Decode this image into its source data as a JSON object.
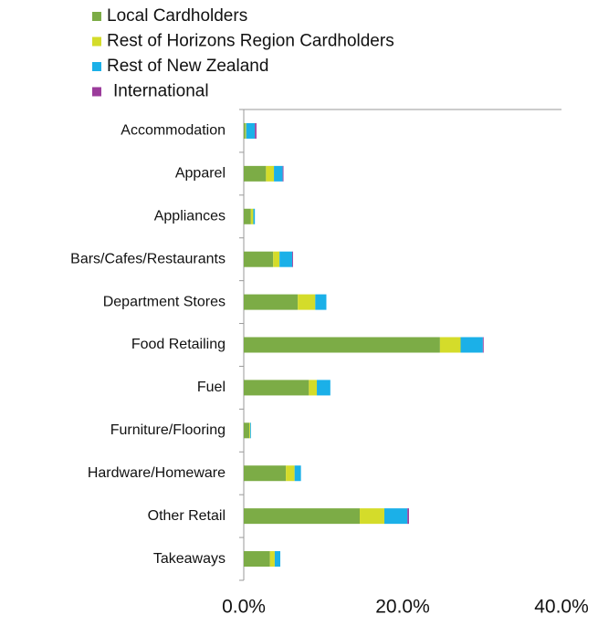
{
  "chart_data": {
    "type": "stacked_barh",
    "categories": [
      "Accommodation",
      "Apparel",
      "Appliances",
      "Bars/Cafes/Restaurants",
      "Department Stores",
      "Food Retailing",
      "Fuel",
      "Furniture/Flooring",
      "Hardware/Homeware",
      "Other Retail",
      "Takeaways"
    ],
    "series": [
      {
        "name": "Local Cardholders",
        "color": "#7cac46",
        "values": [
          0.2,
          2.8,
          0.9,
          3.7,
          6.8,
          24.7,
          8.2,
          0.7,
          5.3,
          14.6,
          3.3
        ]
      },
      {
        "name": "Rest of Horizons Region Cardholders",
        "color": "#d4dc2a",
        "values": [
          0.1,
          1.0,
          0.3,
          0.8,
          2.2,
          2.6,
          1.0,
          0.1,
          1.1,
          3.1,
          0.6
        ]
      },
      {
        "name": "Rest of New Zealand",
        "color": "#1bb0e8",
        "values": [
          1.1,
          1.1,
          0.2,
          1.6,
          1.4,
          2.8,
          1.7,
          0.1,
          0.8,
          2.9,
          0.7
        ]
      },
      {
        "name": "International",
        "color": "#9b3c9b",
        "values": [
          0.2,
          0.1,
          0,
          0.1,
          0,
          0.1,
          0,
          0,
          0,
          0.2,
          0
        ]
      }
    ],
    "xlim": [
      0,
      40
    ],
    "xticks": [
      {
        "value": 0,
        "label": "0.0%"
      },
      {
        "value": 20,
        "label": "20.0%"
      },
      {
        "value": 40,
        "label": "40.0%"
      }
    ],
    "legend": "top-left"
  }
}
